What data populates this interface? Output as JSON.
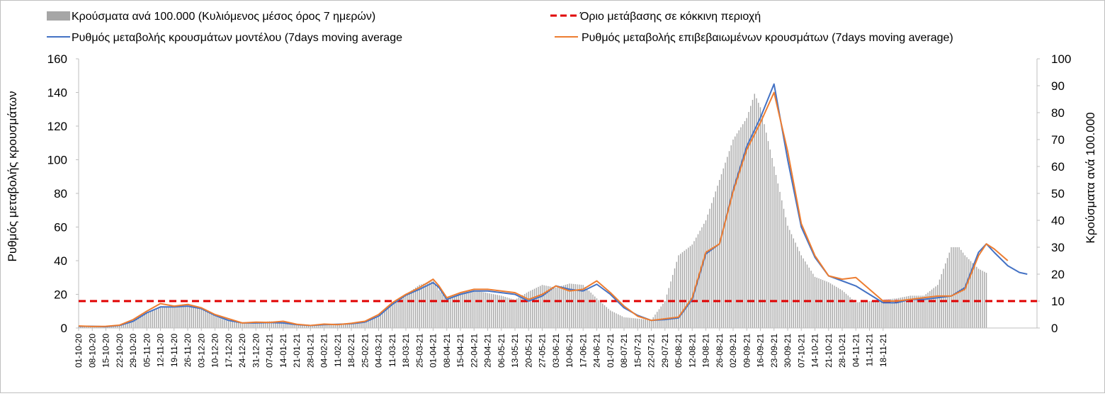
{
  "chart_data": {
    "type": "bar",
    "left_axis": {
      "title": "Ρυθμός μεταβολής κρουσμάτων",
      "ylim": [
        0,
        160
      ],
      "ticks": [
        0,
        20,
        40,
        60,
        80,
        100,
        120,
        140,
        160
      ]
    },
    "right_axis": {
      "title": "Κρούσματα ανά 100.000",
      "ylim": [
        0,
        100
      ],
      "ticks": [
        0,
        10,
        20,
        30,
        40,
        50,
        60,
        70,
        80,
        90,
        100
      ]
    },
    "x_ticks": [
      "01-10-20",
      "08-10-20",
      "15-10-20",
      "22-10-20",
      "29-10-20",
      "05-11-20",
      "12-11-20",
      "19-11-20",
      "26-11-20",
      "03-12-20",
      "10-12-20",
      "17-12-20",
      "24-12-20",
      "31-12-20",
      "07-01-21",
      "14-01-21",
      "21-01-21",
      "28-01-21",
      "04-02-21",
      "11-02-21",
      "18-02-21",
      "25-02-21",
      "04-03-21",
      "11-03-21",
      "18-03-21",
      "25-03-21",
      "01-04-21",
      "08-04-21",
      "15-04-21",
      "22-04-21",
      "29-04-21",
      "06-05-21",
      "13-05-21",
      "20-05-21",
      "27-05-21",
      "03-06-21",
      "10-06-21",
      "17-06-21",
      "24-06-21",
      "01-07-21",
      "08-07-21",
      "15-07-21",
      "22-07-21",
      "29-07-21",
      "05-08-21",
      "12-08-21",
      "19-08-21",
      "26-08-21",
      "02-09-21",
      "09-09-21",
      "16-09-21",
      "23-09-21",
      "30-09-21",
      "07-10-21",
      "14-10-21",
      "21-10-21",
      "28-10-21",
      "04-11-21",
      "11-11-21",
      "18-11-21"
    ],
    "grid": false,
    "legend_position": "top",
    "series": [
      {
        "name": "Κρούσματα ανά 100.000 (Κυλιόμενος μέσος όρος 7 ημερών)",
        "kind": "bar",
        "axis": "right",
        "color": "#a6a6a6",
        "points": [
          [
            0,
            0.5
          ],
          [
            7,
            0.6
          ],
          [
            14,
            0.5
          ],
          [
            21,
            0.9
          ],
          [
            28,
            2.5
          ],
          [
            35,
            5.5
          ],
          [
            42,
            7.5
          ],
          [
            49,
            8.0
          ],
          [
            56,
            8.5
          ],
          [
            63,
            7.5
          ],
          [
            70,
            5.0
          ],
          [
            77,
            3.0
          ],
          [
            84,
            2.0
          ],
          [
            91,
            2.0
          ],
          [
            98,
            2.5
          ],
          [
            105,
            2.2
          ],
          [
            112,
            1.5
          ],
          [
            119,
            1.0
          ],
          [
            126,
            1.3
          ],
          [
            133,
            1.5
          ],
          [
            140,
            1.5
          ],
          [
            147,
            2.0
          ],
          [
            154,
            4.0
          ],
          [
            161,
            9.0
          ],
          [
            168,
            12.5
          ],
          [
            175,
            16.0
          ],
          [
            182,
            17.5
          ],
          [
            185,
            14.0
          ],
          [
            189,
            11.0
          ],
          [
            196,
            13.0
          ],
          [
            203,
            14.0
          ],
          [
            210,
            13.0
          ],
          [
            217,
            12.0
          ],
          [
            224,
            10.5
          ],
          [
            231,
            13.5
          ],
          [
            238,
            16.0
          ],
          [
            245,
            15.0
          ],
          [
            252,
            16.5
          ],
          [
            259,
            16.0
          ],
          [
            266,
            11.0
          ],
          [
            273,
            6.5
          ],
          [
            280,
            4.0
          ],
          [
            287,
            3.5
          ],
          [
            294,
            3.0
          ],
          [
            301,
            10.0
          ],
          [
            308,
            27.0
          ],
          [
            315,
            31.0
          ],
          [
            322,
            40.0
          ],
          [
            329,
            55.0
          ],
          [
            336,
            70.0
          ],
          [
            343,
            78.0
          ],
          [
            347,
            87.0
          ],
          [
            350,
            82.0
          ],
          [
            357,
            60.0
          ],
          [
            364,
            38.0
          ],
          [
            371,
            27.0
          ],
          [
            378,
            19.0
          ],
          [
            385,
            17.0
          ],
          [
            392,
            14.0
          ],
          [
            399,
            9.5
          ],
          [
            406,
            10.0
          ],
          [
            413,
            10.5
          ],
          [
            420,
            11.0
          ],
          [
            427,
            12.0
          ],
          [
            434,
            12.0
          ],
          [
            441,
            16.0
          ],
          [
            448,
            30.0
          ],
          [
            452,
            30.0
          ],
          [
            455,
            27.0
          ],
          [
            462,
            22.0
          ],
          [
            466,
            20.5
          ]
        ]
      },
      {
        "name": "Όριο μετάβασης σε κόκκινη περιοχή",
        "kind": "dashed-line",
        "axis": "left",
        "color": "#e00000",
        "value": 16
      },
      {
        "name": "Ρυθμός μεταβολής κρουσμάτων μοντέλου (7days moving average",
        "kind": "line",
        "axis": "left",
        "color": "#4472c4",
        "points": [
          [
            0,
            1
          ],
          [
            7,
            1
          ],
          [
            14,
            0.8
          ],
          [
            21,
            1.5
          ],
          [
            28,
            4
          ],
          [
            35,
            9
          ],
          [
            42,
            12.5
          ],
          [
            49,
            12.5
          ],
          [
            56,
            13
          ],
          [
            63,
            11.5
          ],
          [
            70,
            7.5
          ],
          [
            77,
            4.5
          ],
          [
            84,
            3
          ],
          [
            91,
            3
          ],
          [
            98,
            3.2
          ],
          [
            105,
            3
          ],
          [
            112,
            2
          ],
          [
            119,
            1.5
          ],
          [
            126,
            2
          ],
          [
            133,
            2.2
          ],
          [
            140,
            2.5
          ],
          [
            147,
            3.5
          ],
          [
            154,
            7
          ],
          [
            161,
            14
          ],
          [
            168,
            19.5
          ],
          [
            175,
            23
          ],
          [
            182,
            27
          ],
          [
            185,
            24
          ],
          [
            189,
            17
          ],
          [
            196,
            20
          ],
          [
            203,
            22
          ],
          [
            210,
            22
          ],
          [
            217,
            21
          ],
          [
            224,
            20
          ],
          [
            231,
            16
          ],
          [
            238,
            19
          ],
          [
            245,
            25
          ],
          [
            252,
            23
          ],
          [
            259,
            22
          ],
          [
            266,
            26
          ],
          [
            273,
            20
          ],
          [
            280,
            12
          ],
          [
            287,
            7.5
          ],
          [
            294,
            4.5
          ],
          [
            301,
            5
          ],
          [
            308,
            6
          ],
          [
            315,
            17
          ],
          [
            322,
            44
          ],
          [
            329,
            50
          ],
          [
            336,
            82
          ],
          [
            343,
            108
          ],
          [
            350,
            125
          ],
          [
            357,
            145
          ],
          [
            364,
            100
          ],
          [
            371,
            60
          ],
          [
            378,
            42
          ],
          [
            385,
            31
          ],
          [
            392,
            28
          ],
          [
            399,
            25
          ],
          [
            406,
            20
          ],
          [
            413,
            15
          ],
          [
            420,
            15
          ],
          [
            427,
            17
          ],
          [
            434,
            17
          ],
          [
            441,
            18
          ],
          [
            448,
            19
          ],
          [
            455,
            24
          ],
          [
            462,
            45
          ],
          [
            466,
            50
          ],
          [
            470,
            45
          ],
          [
            477,
            37
          ],
          [
            483,
            33
          ],
          [
            487,
            32
          ]
        ]
      },
      {
        "name": "Ρυθμός μεταβολής επιβεβαιωμένων κρουσμάτων (7days moving average)",
        "kind": "line",
        "axis": "left",
        "color": "#ed7d31",
        "points": [
          [
            0,
            1.2
          ],
          [
            7,
            0.9
          ],
          [
            14,
            1
          ],
          [
            21,
            1.7
          ],
          [
            28,
            5
          ],
          [
            35,
            10
          ],
          [
            42,
            14.5
          ],
          [
            49,
            13
          ],
          [
            56,
            14
          ],
          [
            63,
            12
          ],
          [
            70,
            8
          ],
          [
            77,
            5.5
          ],
          [
            84,
            3
          ],
          [
            91,
            3.5
          ],
          [
            98,
            3.3
          ],
          [
            105,
            4
          ],
          [
            112,
            2.2
          ],
          [
            119,
            1.5
          ],
          [
            126,
            2.3
          ],
          [
            133,
            2
          ],
          [
            140,
            2.8
          ],
          [
            147,
            4
          ],
          [
            154,
            8
          ],
          [
            161,
            15
          ],
          [
            168,
            20
          ],
          [
            175,
            24
          ],
          [
            182,
            29
          ],
          [
            185,
            25
          ],
          [
            189,
            18
          ],
          [
            196,
            21
          ],
          [
            203,
            23
          ],
          [
            210,
            23
          ],
          [
            217,
            22
          ],
          [
            224,
            21
          ],
          [
            231,
            17
          ],
          [
            238,
            20
          ],
          [
            245,
            25
          ],
          [
            252,
            22
          ],
          [
            259,
            23
          ],
          [
            266,
            28
          ],
          [
            273,
            21
          ],
          [
            280,
            13
          ],
          [
            287,
            7
          ],
          [
            294,
            4.5
          ],
          [
            301,
            5.5
          ],
          [
            308,
            6.5
          ],
          [
            315,
            18
          ],
          [
            322,
            45
          ],
          [
            329,
            50
          ],
          [
            336,
            81
          ],
          [
            343,
            106
          ],
          [
            350,
            122
          ],
          [
            357,
            140
          ],
          [
            364,
            105
          ],
          [
            371,
            62
          ],
          [
            378,
            43
          ],
          [
            385,
            31
          ],
          [
            392,
            29
          ],
          [
            399,
            30
          ],
          [
            406,
            23
          ],
          [
            413,
            16
          ],
          [
            420,
            16
          ],
          [
            427,
            17
          ],
          [
            434,
            18
          ],
          [
            441,
            19
          ],
          [
            448,
            19
          ],
          [
            455,
            23
          ],
          [
            462,
            43
          ],
          [
            466,
            50
          ],
          [
            470,
            47
          ],
          [
            477,
            40
          ]
        ]
      }
    ]
  }
}
